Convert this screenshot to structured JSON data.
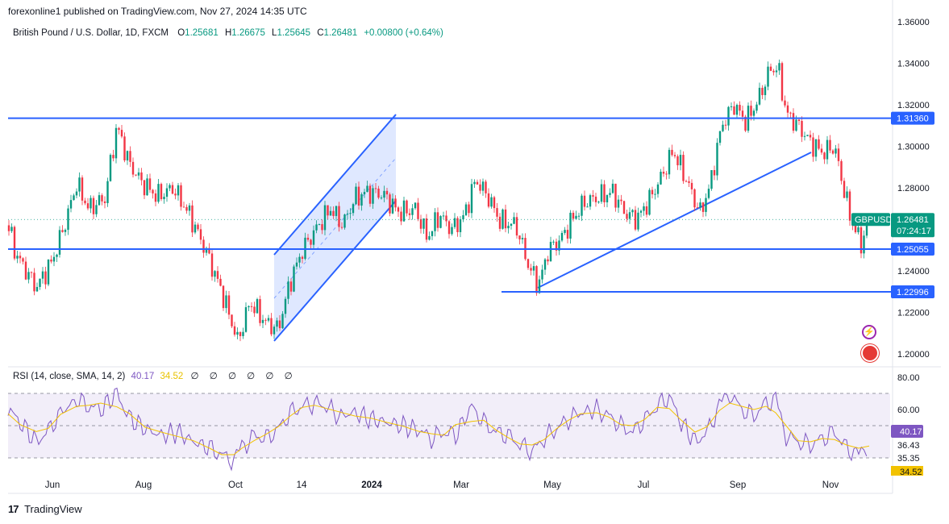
{
  "header": {
    "published": "forexonline1 published on TradingView.com, Nov 27, 2024 14:35 UTC"
  },
  "legend": {
    "symbol": "British Pound / U.S. Dollar, 1D, FXCM",
    "o_label": "O",
    "o": "1.25681",
    "h_label": "H",
    "h": "1.26675",
    "l_label": "L",
    "l": "1.25645",
    "c_label": "C",
    "c": "1.26481",
    "change": "+0.00800 (+0.64%)"
  },
  "rsi_legend": {
    "label": "RSI (14, close, SMA, 14, 2)",
    "rsi_value": "40.17",
    "sma_value": "34.52",
    "icons": "∅ ∅ ∅ ∅ ∅ ∅"
  },
  "footer": {
    "logo": "17",
    "brand": "TradingView"
  },
  "colors": {
    "up": "#089981",
    "down": "#f23645",
    "line": "#2962ff",
    "rsi": "#7e57c2",
    "sma": "#f2c200",
    "band": "#ede7f6"
  },
  "chart_data": {
    "type": "candlestick",
    "symbol": "GBPUSD",
    "x_ticks": [
      "Jun",
      "Aug",
      "Oct",
      "14",
      "2024",
      "Mar",
      "May",
      "Jul",
      "Sep",
      "Nov"
    ],
    "y_ticks": [
      "1.36000",
      "1.34000",
      "1.32000",
      "1.30000",
      "1.28000",
      "1.26000",
      "1.24000",
      "1.22000",
      "1.20000"
    ],
    "ylim": [
      1.195,
      1.362
    ],
    "price_path": [
      [
        0,
        1.25
      ],
      [
        10,
        1.262
      ],
      [
        20,
        1.248
      ],
      [
        45,
        1.232
      ],
      [
        65,
        1.245
      ],
      [
        80,
        1.262
      ],
      [
        95,
        1.282
      ],
      [
        110,
        1.27
      ],
      [
        130,
        1.275
      ],
      [
        145,
        1.31
      ],
      [
        160,
        1.292
      ],
      [
        175,
        1.283
      ],
      [
        195,
        1.276
      ],
      [
        215,
        1.28
      ],
      [
        235,
        1.267
      ],
      [
        255,
        1.25
      ],
      [
        275,
        1.23
      ],
      [
        295,
        1.206
      ],
      [
        310,
        1.225
      ],
      [
        330,
        1.215
      ],
      [
        345,
        1.212
      ],
      [
        360,
        1.235
      ],
      [
        375,
        1.25
      ],
      [
        395,
        1.262
      ],
      [
        410,
        1.27
      ],
      [
        425,
        1.262
      ],
      [
        440,
        1.275
      ],
      [
        455,
        1.278
      ],
      [
        475,
        1.277
      ],
      [
        495,
        1.268
      ],
      [
        515,
        1.27
      ],
      [
        530,
        1.256
      ],
      [
        545,
        1.267
      ],
      [
        560,
        1.26
      ],
      [
        575,
        1.266
      ],
      [
        590,
        1.284
      ],
      [
        605,
        1.276
      ],
      [
        620,
        1.264
      ],
      [
        640,
        1.262
      ],
      [
        655,
        1.243
      ],
      [
        668,
        1.233
      ],
      [
        680,
        1.25
      ],
      [
        695,
        1.255
      ],
      [
        710,
        1.265
      ],
      [
        725,
        1.273
      ],
      [
        745,
        1.276
      ],
      [
        760,
        1.278
      ],
      [
        775,
        1.268
      ],
      [
        790,
        1.265
      ],
      [
        805,
        1.274
      ],
      [
        820,
        1.285
      ],
      [
        835,
        1.298
      ],
      [
        850,
        1.285
      ],
      [
        868,
        1.268
      ],
      [
        880,
        1.28
      ],
      [
        895,
        1.31
      ],
      [
        910,
        1.32
      ],
      [
        925,
        1.312
      ],
      [
        940,
        1.322
      ],
      [
        955,
        1.337
      ],
      [
        965,
        1.338
      ],
      [
        975,
        1.316
      ],
      [
        990,
        1.31
      ],
      [
        1005,
        1.302
      ],
      [
        1020,
        1.297
      ],
      [
        1035,
        1.3
      ],
      [
        1045,
        1.282
      ],
      [
        1055,
        1.265
      ],
      [
        1068,
        1.253
      ],
      [
        1078,
        1.265
      ]
    ],
    "levels": [
      {
        "label": "1.31360",
        "value": 1.3136
      },
      {
        "label": "1.25055",
        "value": 1.25055
      },
      {
        "label": "1.22996",
        "value": 1.22996
      }
    ],
    "last_price": {
      "label": "GBPUSD",
      "value": "1.26481",
      "countdown": "07:24:17"
    },
    "rsi": {
      "y_ticks": [
        "80.00",
        "60.00"
      ],
      "right_labels": [
        "36.43",
        "35.35"
      ],
      "current_label": "40.17",
      "sma_label": "34.52",
      "band": [
        30,
        70
      ],
      "path": [
        [
          10,
          60
        ],
        [
          25,
          52
        ],
        [
          45,
          40
        ],
        [
          60,
          47
        ],
        [
          75,
          58
        ],
        [
          95,
          66
        ],
        [
          110,
          62
        ],
        [
          125,
          60
        ],
        [
          145,
          70
        ],
        [
          160,
          55
        ],
        [
          180,
          48
        ],
        [
          200,
          44
        ],
        [
          220,
          46
        ],
        [
          240,
          40
        ],
        [
          260,
          36
        ],
        [
          275,
          32
        ],
        [
          290,
          28
        ],
        [
          300,
          36
        ],
        [
          315,
          44
        ],
        [
          330,
          42
        ],
        [
          345,
          48
        ],
        [
          360,
          58
        ],
        [
          375,
          62
        ],
        [
          390,
          64
        ],
        [
          405,
          62
        ],
        [
          420,
          56
        ],
        [
          440,
          58
        ],
        [
          460,
          54
        ],
        [
          480,
          52
        ],
        [
          500,
          50
        ],
        [
          520,
          47
        ],
        [
          535,
          42
        ],
        [
          550,
          46
        ],
        [
          565,
          44
        ],
        [
          585,
          62
        ],
        [
          600,
          52
        ],
        [
          615,
          46
        ],
        [
          630,
          44
        ],
        [
          645,
          38
        ],
        [
          660,
          34
        ],
        [
          675,
          42
        ],
        [
          690,
          48
        ],
        [
          705,
          54
        ],
        [
          720,
          58
        ],
        [
          740,
          60
        ],
        [
          755,
          56
        ],
        [
          770,
          50
        ],
        [
          785,
          46
        ],
        [
          800,
          54
        ],
        [
          815,
          62
        ],
        [
          830,
          68
        ],
        [
          845,
          52
        ],
        [
          862,
          40
        ],
        [
          877,
          46
        ],
        [
          892,
          62
        ],
        [
          905,
          70
        ],
        [
          920,
          60
        ],
        [
          935,
          56
        ],
        [
          950,
          64
        ],
        [
          962,
          66
        ],
        [
          975,
          44
        ],
        [
          990,
          40
        ],
        [
          1005,
          38
        ],
        [
          1020,
          42
        ],
        [
          1035,
          46
        ],
        [
          1050,
          36
        ],
        [
          1065,
          32
        ],
        [
          1078,
          40
        ]
      ]
    }
  }
}
